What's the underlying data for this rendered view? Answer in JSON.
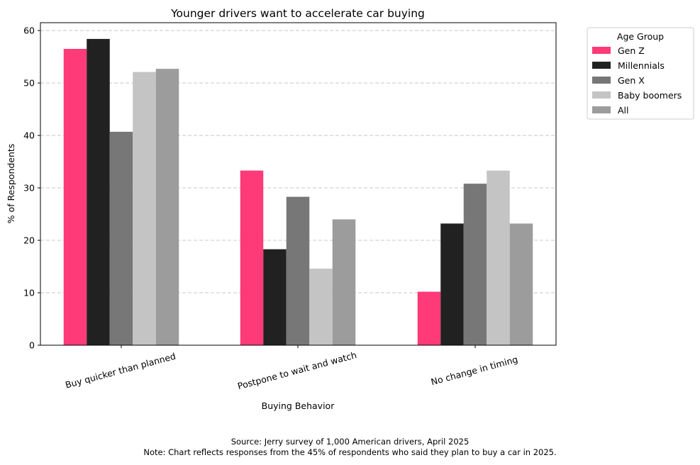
{
  "chart_data": {
    "type": "bar",
    "title": "Younger drivers want to accelerate car buying",
    "xlabel": "Buying Behavior",
    "ylabel": "% of Respondents",
    "ylim": [
      0,
      61.5
    ],
    "yticks": [
      0,
      10,
      20,
      30,
      40,
      50,
      60
    ],
    "grid": "y-dashed",
    "categories": [
      "Buy quicker than planned",
      "Postpone to wait and watch",
      "No change in timing"
    ],
    "legend": {
      "title": "Age Group",
      "placement": "outside-top-right"
    },
    "series": [
      {
        "name": "Gen Z",
        "color": "#ff3a78",
        "values": [
          56.5,
          33.3,
          10.2
        ]
      },
      {
        "name": "Millennials",
        "color": "#212121",
        "values": [
          58.4,
          18.3,
          23.2
        ]
      },
      {
        "name": "Gen X",
        "color": "#777777",
        "values": [
          40.7,
          28.3,
          30.8
        ]
      },
      {
        "name": "Baby boomers",
        "color": "#c4c4c4",
        "values": [
          52.1,
          14.6,
          33.3
        ]
      },
      {
        "name": "All",
        "color": "#9c9c9c",
        "values": [
          52.7,
          24.0,
          23.2
        ]
      }
    ]
  },
  "footer": {
    "source": "Source: Jerry survey of 1,000 American drivers, April 2025",
    "note": "Note: Chart reflects responses from the 45% of respondents who said they plan to buy a car in 2025."
  }
}
